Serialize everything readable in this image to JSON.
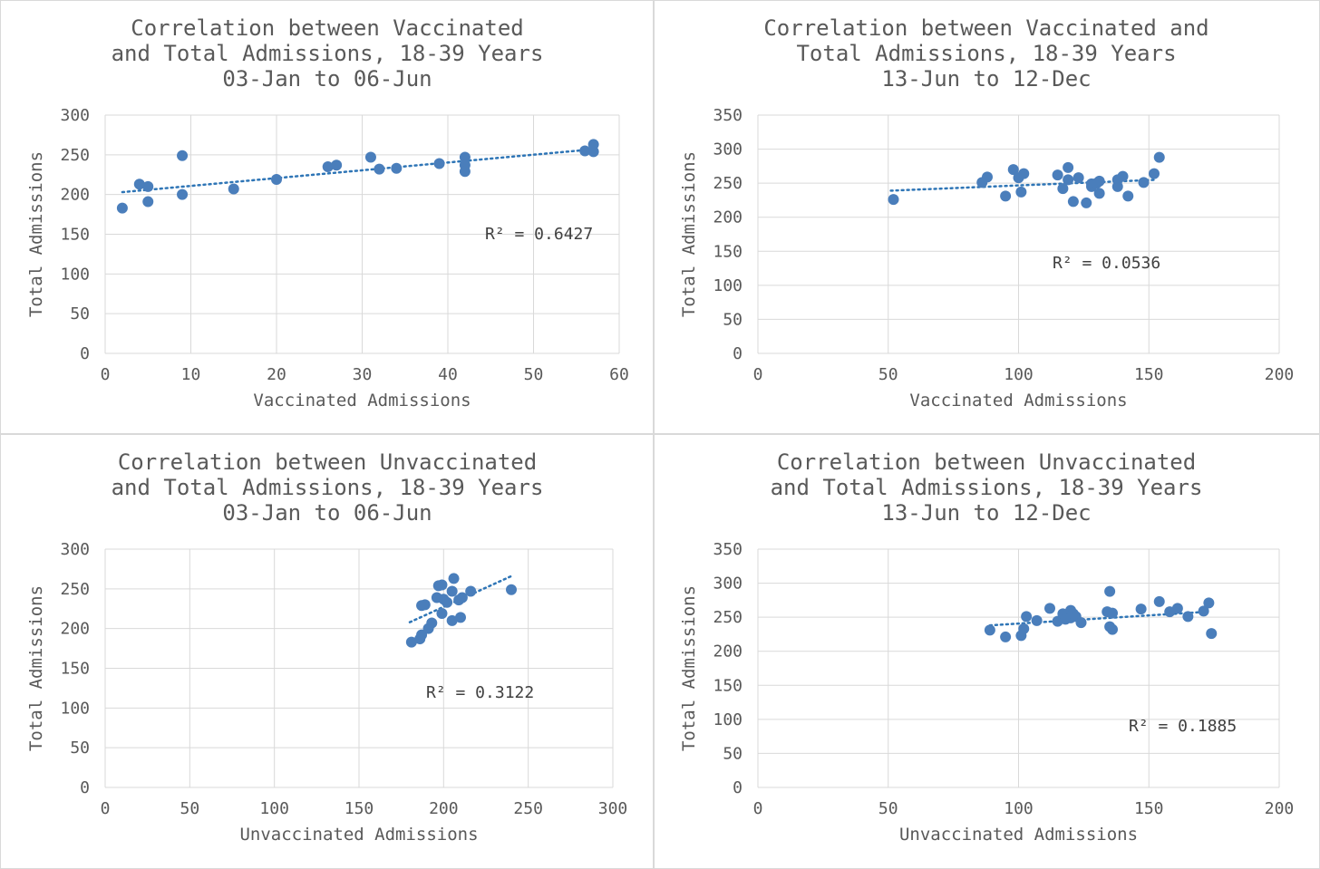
{
  "marker_color": "#4a7ebb",
  "trend_color": "#2e75b6",
  "grid_color": "#d9d9d9",
  "chart_data": [
    {
      "type": "scatter",
      "title": [
        "Correlation between Vaccinated",
        "and Total Admissions, 18-39 Years",
        "03-Jan to 06-Jun"
      ],
      "xlabel": "Vaccinated Admissions",
      "ylabel": "Total Admissions",
      "xlim": [
        0,
        60
      ],
      "xticks": [
        0,
        10,
        20,
        30,
        40,
        50,
        60
      ],
      "ylim": [
        0,
        300
      ],
      "yticks": [
        0,
        50,
        100,
        150,
        200,
        250,
        300
      ],
      "grid": true,
      "r2_label": "R² = 0.6427",
      "trendline": [
        [
          2,
          203
        ],
        [
          57,
          257
        ]
      ],
      "points": [
        [
          2,
          183
        ],
        [
          4,
          213
        ],
        [
          5,
          210
        ],
        [
          5,
          191
        ],
        [
          9,
          249
        ],
        [
          9,
          200
        ],
        [
          15,
          207
        ],
        [
          20,
          219
        ],
        [
          26,
          235
        ],
        [
          27,
          237
        ],
        [
          31,
          247
        ],
        [
          32,
          232
        ],
        [
          34,
          233
        ],
        [
          39,
          239
        ],
        [
          42,
          247
        ],
        [
          42,
          237
        ],
        [
          42,
          229
        ],
        [
          56,
          255
        ],
        [
          57,
          263
        ],
        [
          57,
          254
        ]
      ]
    },
    {
      "type": "scatter",
      "title": [
        "Correlation between Vaccinated and",
        "Total Admissions, 18-39 Years",
        "13-Jun to 12-Dec"
      ],
      "xlabel": "Vaccinated Admissions",
      "ylabel": "Total Admissions",
      "xlim": [
        0,
        200
      ],
      "xticks": [
        0,
        50,
        100,
        150,
        200
      ],
      "ylim": [
        0,
        350
      ],
      "yticks": [
        0,
        50,
        100,
        150,
        200,
        250,
        300,
        350
      ],
      "grid": true,
      "r2_label": "R² = 0.0536",
      "trendline": [
        [
          51,
          239
        ],
        [
          153,
          255
        ]
      ],
      "points": [
        [
          52,
          226
        ],
        [
          86,
          251
        ],
        [
          88,
          259
        ],
        [
          95,
          231
        ],
        [
          98,
          270
        ],
        [
          100,
          258
        ],
        [
          101,
          237
        ],
        [
          102,
          264
        ],
        [
          115,
          262
        ],
        [
          117,
          242
        ],
        [
          119,
          273
        ],
        [
          119,
          255
        ],
        [
          121,
          223
        ],
        [
          123,
          258
        ],
        [
          126,
          221
        ],
        [
          128,
          245
        ],
        [
          128,
          249
        ],
        [
          130,
          250
        ],
        [
          131,
          235
        ],
        [
          131,
          253
        ],
        [
          138,
          255
        ],
        [
          138,
          245
        ],
        [
          140,
          260
        ],
        [
          142,
          231
        ],
        [
          148,
          251
        ],
        [
          152,
          264
        ],
        [
          154,
          288
        ]
      ]
    },
    {
      "type": "scatter",
      "title": [
        "Correlation between Unvaccinated",
        "and Total Admissions, 18-39 Years",
        "03-Jan to 06-Jun"
      ],
      "xlabel": "Unvaccinated Admissions",
      "ylabel": "Total Admissions",
      "xlim": [
        0,
        300
      ],
      "xticks": [
        0,
        50,
        100,
        150,
        200,
        250,
        300
      ],
      "ylim": [
        0,
        300
      ],
      "yticks": [
        0,
        50,
        100,
        150,
        200,
        250,
        300
      ],
      "grid": true,
      "r2_label": "R² = 0.3122",
      "trendline": [
        [
          180,
          208
        ],
        [
          240,
          266
        ]
      ],
      "points": [
        [
          181,
          183
        ],
        [
          186,
          187
        ],
        [
          187,
          192
        ],
        [
          187,
          229
        ],
        [
          189,
          230
        ],
        [
          191,
          200
        ],
        [
          193,
          207
        ],
        [
          196,
          239
        ],
        [
          197,
          254
        ],
        [
          199,
          255
        ],
        [
          199,
          219
        ],
        [
          200,
          237
        ],
        [
          202,
          233
        ],
        [
          205,
          210
        ],
        [
          205,
          247
        ],
        [
          206,
          263
        ],
        [
          209,
          236
        ],
        [
          210,
          214
        ],
        [
          211,
          239
        ],
        [
          216,
          247
        ],
        [
          240,
          249
        ]
      ]
    },
    {
      "type": "scatter",
      "title": [
        "Correlation between Unvaccinated",
        "and Total Admissions, 18-39 Years",
        "13-Jun to 12-Dec"
      ],
      "xlabel": "Unvaccinated Admissions",
      "ylabel": "Total Admissions",
      "xlim": [
        0,
        200
      ],
      "xticks": [
        0,
        50,
        100,
        150,
        200
      ],
      "ylim": [
        0,
        350
      ],
      "yticks": [
        0,
        50,
        100,
        150,
        200,
        250,
        300,
        350
      ],
      "grid": true,
      "r2_label": "R² = 0.1885",
      "trendline": [
        [
          89,
          238
        ],
        [
          172,
          258
        ]
      ],
      "points": [
        [
          89,
          231
        ],
        [
          95,
          221
        ],
        [
          101,
          223
        ],
        [
          102,
          233
        ],
        [
          103,
          251
        ],
        [
          107,
          245
        ],
        [
          112,
          263
        ],
        [
          115,
          244
        ],
        [
          117,
          255
        ],
        [
          118,
          247
        ],
        [
          120,
          260
        ],
        [
          120,
          249
        ],
        [
          121,
          255
        ],
        [
          122,
          251
        ],
        [
          124,
          242
        ],
        [
          134,
          258
        ],
        [
          135,
          288
        ],
        [
          135,
          236
        ],
        [
          136,
          256
        ],
        [
          136,
          232
        ],
        [
          147,
          262
        ],
        [
          154,
          273
        ],
        [
          158,
          258
        ],
        [
          161,
          263
        ],
        [
          165,
          251
        ],
        [
          171,
          259
        ],
        [
          173,
          271
        ],
        [
          174,
          226
        ]
      ]
    }
  ]
}
